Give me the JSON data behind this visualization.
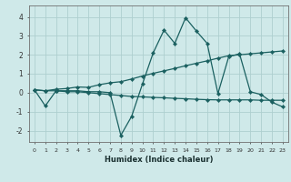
{
  "xlabel": "Humidex (Indice chaleur)",
  "background_color": "#cfe9e9",
  "grid_color": "#aecfcf",
  "line_color": "#1a6060",
  "xlim": [
    -0.5,
    23.5
  ],
  "ylim": [
    -2.6,
    4.6
  ],
  "x": [
    0,
    1,
    2,
    3,
    4,
    5,
    6,
    7,
    8,
    9,
    10,
    11,
    12,
    13,
    14,
    15,
    16,
    17,
    18,
    19,
    20,
    21,
    22,
    23
  ],
  "line1": [
    0.15,
    -0.7,
    0.1,
    0.1,
    0.1,
    0.05,
    0.05,
    0.0,
    -2.25,
    -1.25,
    0.45,
    2.1,
    3.3,
    2.6,
    3.95,
    3.25,
    2.6,
    -0.05,
    1.9,
    2.05,
    0.05,
    -0.1,
    -0.5,
    -0.75
  ],
  "line2": [
    0.15,
    0.1,
    0.1,
    0.05,
    0.05,
    0.0,
    -0.05,
    -0.1,
    -0.15,
    -0.2,
    -0.22,
    -0.25,
    -0.27,
    -0.3,
    -0.32,
    -0.35,
    -0.37,
    -0.38,
    -0.38,
    -0.38,
    -0.38,
    -0.4,
    -0.4,
    -0.4
  ],
  "line3": [
    0.15,
    0.1,
    0.18,
    0.22,
    0.3,
    0.28,
    0.42,
    0.52,
    0.58,
    0.72,
    0.88,
    1.02,
    1.15,
    1.28,
    1.42,
    1.55,
    1.68,
    1.82,
    1.95,
    2.0,
    2.05,
    2.1,
    2.15,
    2.2
  ]
}
